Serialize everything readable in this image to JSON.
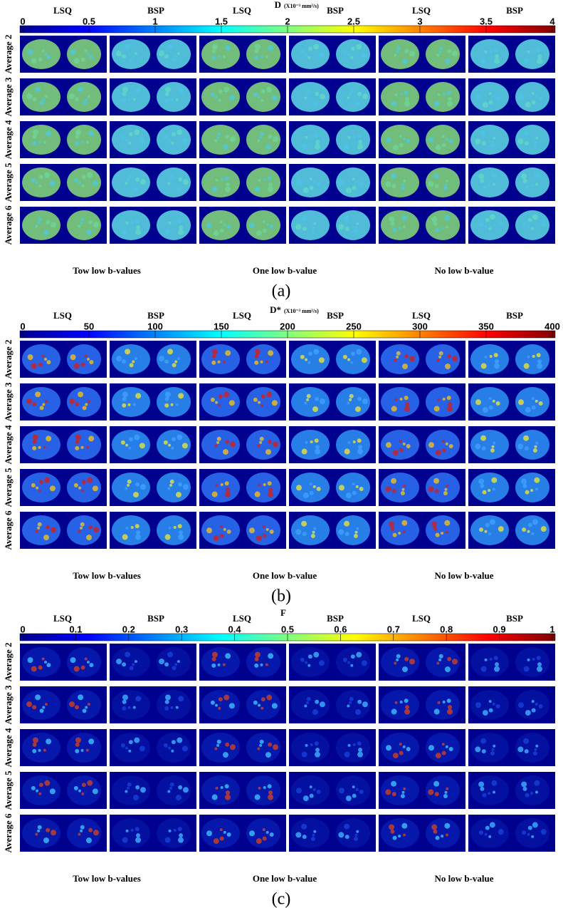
{
  "panels": [
    {
      "parameter": "D",
      "unit": "(X10⁻³ mm²/s)",
      "columns": [
        "LSQ",
        "BSP",
        "LSQ",
        "BSP",
        "LSQ",
        "BSP"
      ],
      "colorbar": {
        "lim": [
          0,
          4
        ],
        "ticks": [
          0,
          0.5,
          1,
          1.5,
          2,
          2.5,
          3,
          3.5,
          4
        ]
      },
      "rows": [
        "Average 2",
        "Average 3",
        "Average 4",
        "Average 5",
        "Average 6"
      ],
      "groups": [
        "Tow low b-values",
        "One low b-value",
        "No low b-value"
      ],
      "label": "(a)"
    },
    {
      "parameter": "D*",
      "unit": "(X10⁻³ mm²/s)",
      "columns": [
        "LSQ",
        "BSP",
        "LSQ",
        "BSP",
        "LSQ",
        "BSP"
      ],
      "colorbar": {
        "lim": [
          0,
          400
        ],
        "ticks": [
          0,
          50,
          100,
          150,
          200,
          250,
          300,
          350,
          400
        ]
      },
      "rows": [
        "Average 2",
        "Average 3",
        "Average 4",
        "Average 5",
        "Average 6"
      ],
      "groups": [
        "Tow low b-values",
        "One low b-value",
        "No low b-value"
      ],
      "label": "(b)"
    },
    {
      "parameter": "F",
      "columns": [
        "LSQ",
        "BSP",
        "LSQ",
        "BSP",
        "LSQ",
        "BSP"
      ],
      "colorbar": {
        "lim": [
          0,
          1
        ],
        "ticks": [
          0,
          0.1,
          0.2,
          0.3,
          0.4,
          0.5,
          0.6,
          0.7,
          0.8,
          0.9,
          1
        ]
      },
      "rows": [
        "Average 2",
        "Average 3",
        "Average 4",
        "Average 5",
        "Average 6"
      ],
      "groups": [
        "Tow low b-values",
        "One low b-value",
        "No low b-value"
      ],
      "label": "(c)"
    }
  ]
}
